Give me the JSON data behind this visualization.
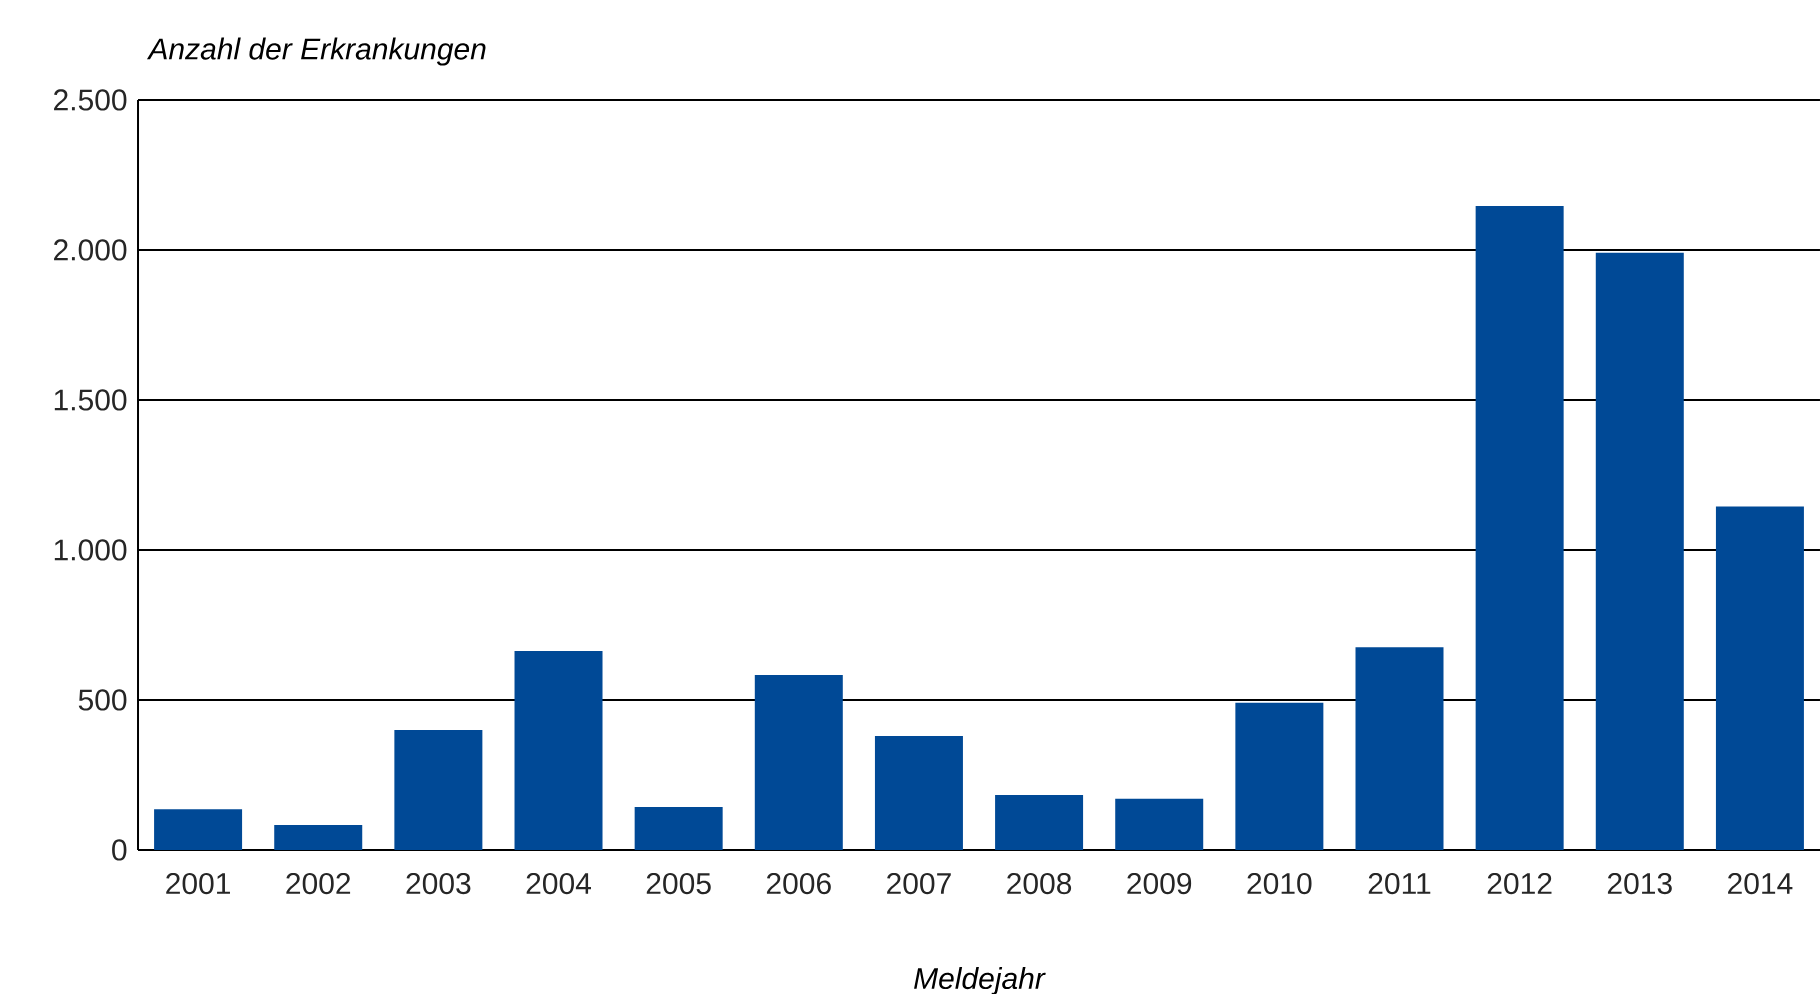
{
  "chart_data": {
    "type": "bar",
    "ylabel": "Anzahl der Erkrankungen",
    "xlabel": "Meldejahr",
    "categories": [
      "2001",
      "2002",
      "2003",
      "2004",
      "2005",
      "2006",
      "2007",
      "2008",
      "2009",
      "2010",
      "2011",
      "2012",
      "2013",
      "2014"
    ],
    "values": [
      136,
      83,
      400,
      663,
      143,
      583,
      380,
      183,
      171,
      491,
      676,
      2147,
      1991,
      1145
    ],
    "color": "#004996",
    "ylim": [
      0,
      2500
    ],
    "yticks": [
      0,
      500,
      {
        "value": 1000,
        "label": "1.000"
      },
      {
        "value": 1500,
        "label": "1.500"
      },
      {
        "value": 2000,
        "label": "2.000"
      },
      {
        "value": 2500,
        "label": "2.500"
      }
    ],
    "grid": "y"
  }
}
